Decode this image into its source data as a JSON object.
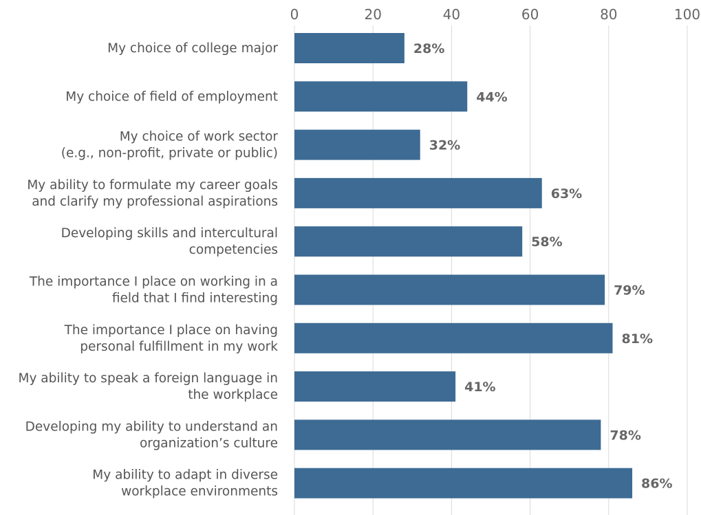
{
  "chart_data": {
    "type": "bar",
    "orientation": "horizontal",
    "categories": [
      [
        "My choice of college major"
      ],
      [
        "My choice of field of employment"
      ],
      [
        "My choice of work sector",
        "(e.g., non-profit, private or public)"
      ],
      [
        "My ability to formulate my career goals",
        "and clarify my professional aspirations"
      ],
      [
        "Developing skills and intercultural",
        "competencies"
      ],
      [
        "The importance I place on working in a",
        "field that I find interesting"
      ],
      [
        "The importance I place on having",
        "personal fulfillment in my work"
      ],
      [
        "My ability to speak a foreign language in",
        "the workplace"
      ],
      [
        "Developing my ability to understand an",
        "organization’s culture"
      ],
      [
        "My ability to adapt in diverse",
        "workplace environments"
      ]
    ],
    "values": [
      28,
      44,
      32,
      63,
      58,
      79,
      81,
      41,
      78,
      86
    ],
    "value_labels": [
      "28%",
      "44%",
      "32%",
      "63%",
      "58%",
      "79%",
      "81%",
      "41%",
      "78%",
      "86%"
    ],
    "xlim": [
      0,
      100
    ],
    "xticks": [
      0,
      20,
      40,
      60,
      80,
      100
    ],
    "xtick_labels": [
      "0",
      "20",
      "40",
      "60",
      "80",
      "100"
    ],
    "axis_position": "top",
    "grid": true,
    "title": "",
    "xlabel": "",
    "ylabel": ""
  },
  "colors": {
    "bar": "#3d6b94",
    "grid": "#d9d9d9",
    "tick_text": "#666666",
    "category_text": "#555555",
    "value_text": "#666666"
  }
}
